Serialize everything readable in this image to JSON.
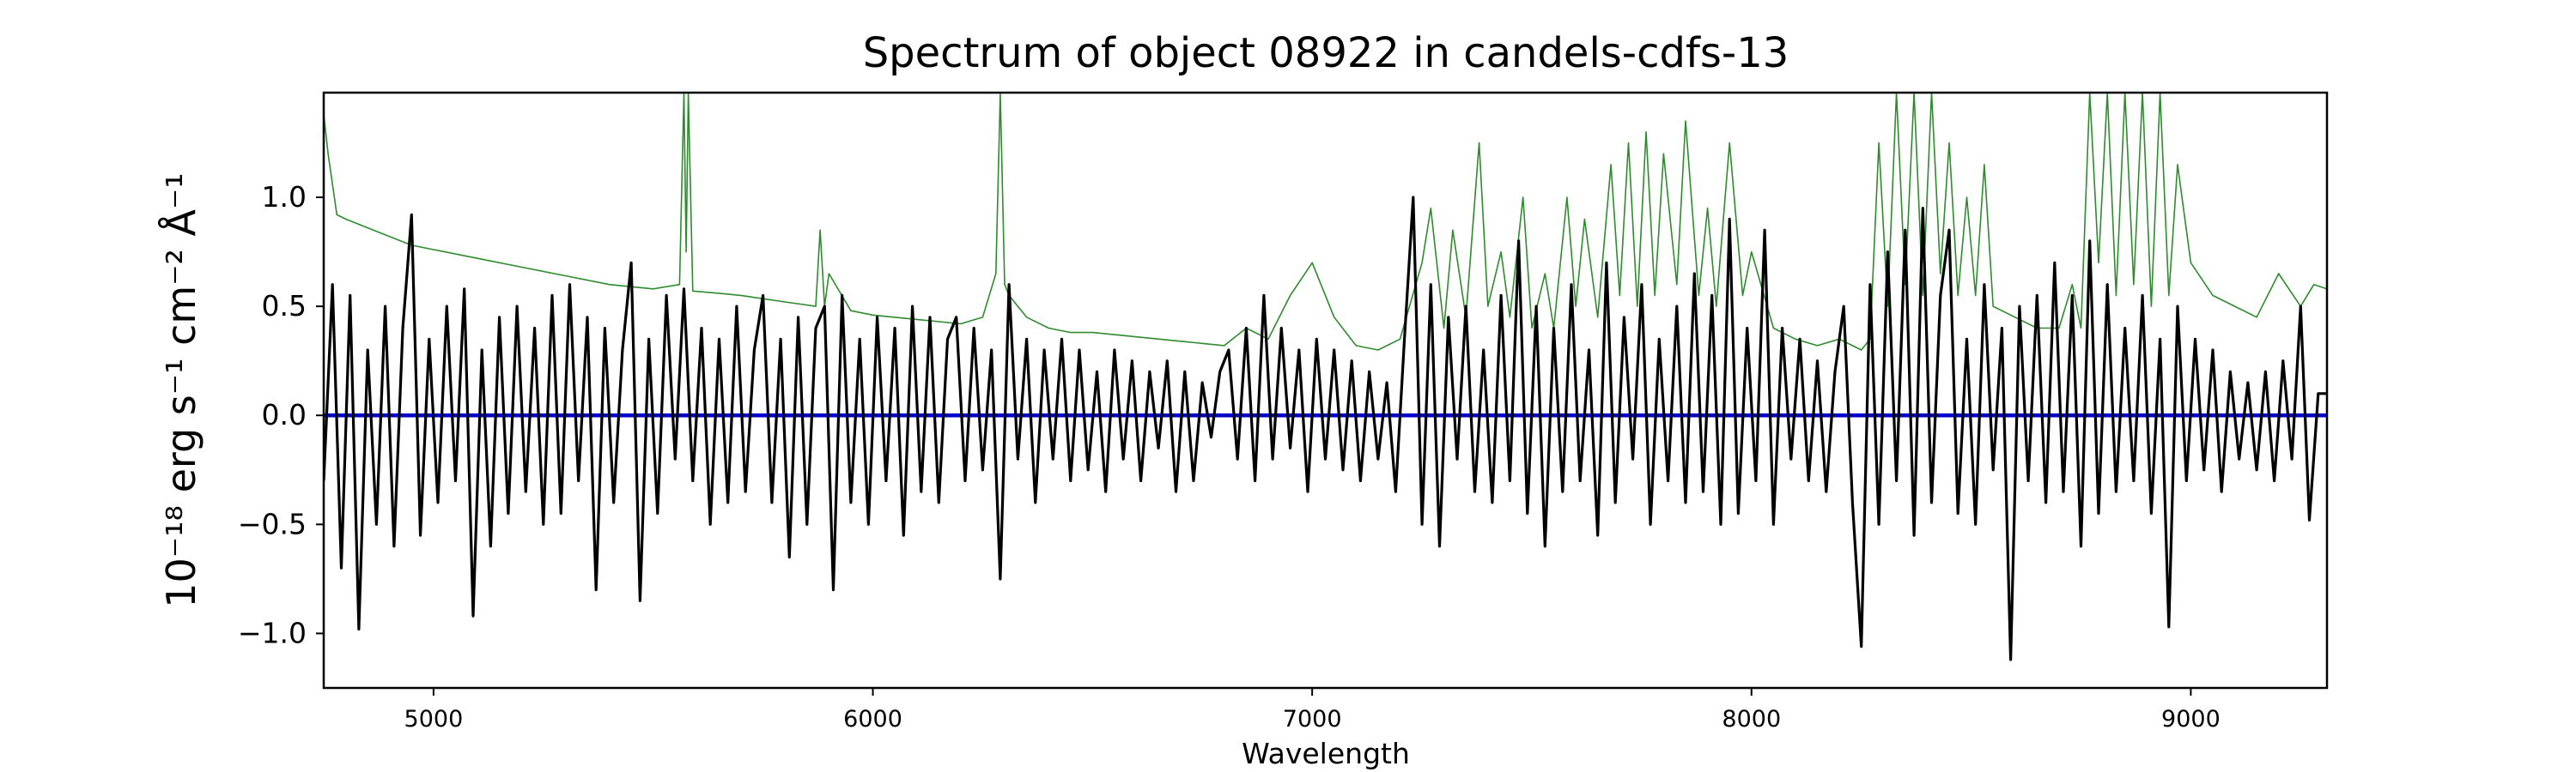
{
  "chart_data": {
    "type": "line",
    "title": "Spectrum of object 08922 in candels-cdfs-13",
    "xlabel": "Wavelength",
    "ylabel": "10⁻¹⁸ erg s⁻¹ cm⁻² Å⁻¹",
    "xlim": [
      4750,
      9310
    ],
    "ylim": [
      -1.25,
      1.48
    ],
    "x_ticks": [
      5000,
      6000,
      7000,
      8000,
      9000
    ],
    "y_ticks": [
      -1.0,
      -0.5,
      0.0,
      0.5,
      1.0
    ],
    "y_tick_labels": [
      "−1.0",
      "−0.5",
      "0.0",
      "0.5",
      "1.0"
    ],
    "grid": false,
    "colors": {
      "flux": "#000000",
      "error": "#2e8b2e",
      "zero": "#0000cd"
    },
    "series": [
      {
        "role": "flux",
        "x": [
          4750,
          4770,
          4790,
          4810,
          4830,
          4850,
          4870,
          4890,
          4910,
          4930,
          4950,
          4970,
          4990,
          5010,
          5030,
          5050,
          5070,
          5090,
          5110,
          5130,
          5150,
          5170,
          5190,
          5210,
          5230,
          5250,
          5270,
          5290,
          5310,
          5330,
          5350,
          5370,
          5390,
          5410,
          5430,
          5450,
          5470,
          5490,
          5510,
          5530,
          5550,
          5570,
          5590,
          5610,
          5630,
          5650,
          5670,
          5690,
          5710,
          5730,
          5750,
          5770,
          5790,
          5810,
          5830,
          5850,
          5870,
          5890,
          5910,
          5930,
          5950,
          5970,
          5990,
          6010,
          6030,
          6050,
          6070,
          6090,
          6110,
          6130,
          6150,
          6170,
          6190,
          6210,
          6230,
          6250,
          6270,
          6290,
          6310,
          6330,
          6350,
          6370,
          6390,
          6410,
          6430,
          6450,
          6470,
          6490,
          6510,
          6530,
          6550,
          6570,
          6590,
          6610,
          6630,
          6650,
          6670,
          6690,
          6710,
          6730,
          6750,
          6770,
          6790,
          6810,
          6830,
          6850,
          6870,
          6890,
          6910,
          6930,
          6950,
          6970,
          6990,
          7010,
          7030,
          7050,
          7070,
          7090,
          7110,
          7130,
          7150,
          7170,
          7190,
          7210,
          7230,
          7250,
          7270,
          7290,
          7310,
          7330,
          7350,
          7370,
          7390,
          7410,
          7430,
          7450,
          7470,
          7490,
          7510,
          7530,
          7550,
          7570,
          7590,
          7610,
          7630,
          7650,
          7670,
          7690,
          7710,
          7730,
          7750,
          7770,
          7790,
          7810,
          7830,
          7850,
          7870,
          7890,
          7910,
          7930,
          7950,
          7970,
          7990,
          8010,
          8030,
          8050,
          8070,
          8090,
          8110,
          8130,
          8150,
          8170,
          8190,
          8210,
          8230,
          8250,
          8270,
          8290,
          8310,
          8330,
          8350,
          8370,
          8390,
          8410,
          8430,
          8450,
          8470,
          8490,
          8510,
          8530,
          8550,
          8570,
          8590,
          8610,
          8630,
          8650,
          8670,
          8690,
          8710,
          8730,
          8750,
          8770,
          8790,
          8810,
          8830,
          8850,
          8870,
          8890,
          8910,
          8930,
          8950,
          8970,
          8990,
          9010,
          9030,
          9050,
          9070,
          9090,
          9110,
          9130,
          9150,
          9170,
          9190,
          9210,
          9230,
          9250,
          9270,
          9290,
          9310
        ],
        "y": [
          -0.3,
          0.6,
          -0.7,
          0.55,
          -0.98,
          0.3,
          -0.5,
          0.5,
          -0.6,
          0.4,
          0.92,
          -0.55,
          0.35,
          -0.4,
          0.5,
          -0.3,
          0.58,
          -0.92,
          0.3,
          -0.6,
          0.45,
          -0.45,
          0.5,
          -0.35,
          0.4,
          -0.5,
          0.55,
          -0.45,
          0.6,
          -0.3,
          0.45,
          -0.8,
          0.4,
          -0.4,
          0.3,
          0.7,
          -0.85,
          0.35,
          -0.45,
          0.55,
          -0.2,
          0.58,
          -0.3,
          0.4,
          -0.5,
          0.35,
          -0.4,
          0.5,
          -0.35,
          0.3,
          0.55,
          -0.4,
          0.35,
          -0.65,
          0.45,
          -0.5,
          0.4,
          0.5,
          -0.8,
          0.55,
          -0.4,
          0.35,
          -0.5,
          0.45,
          -0.3,
          0.4,
          -0.55,
          0.5,
          -0.35,
          0.45,
          -0.4,
          0.35,
          0.45,
          -0.3,
          0.4,
          -0.25,
          0.3,
          -0.75,
          0.6,
          -0.2,
          0.35,
          -0.4,
          0.3,
          -0.2,
          0.35,
          -0.3,
          0.3,
          -0.25,
          0.2,
          -0.35,
          0.3,
          -0.2,
          0.25,
          -0.3,
          0.2,
          -0.15,
          0.25,
          -0.35,
          0.2,
          -0.3,
          0.15,
          -0.1,
          0.2,
          0.3,
          -0.2,
          0.4,
          -0.3,
          0.55,
          -0.2,
          0.4,
          -0.15,
          0.3,
          -0.35,
          0.35,
          -0.2,
          0.3,
          -0.25,
          0.25,
          -0.3,
          0.2,
          -0.2,
          0.15,
          -0.35,
          0.35,
          1.0,
          -0.5,
          0.6,
          -0.6,
          0.45,
          -0.2,
          0.5,
          -0.35,
          0.3,
          -0.4,
          0.55,
          -0.3,
          0.8,
          -0.45,
          0.5,
          -0.6,
          0.4,
          -0.35,
          0.6,
          -0.3,
          0.3,
          -0.55,
          0.7,
          -0.4,
          0.45,
          -0.2,
          0.6,
          -0.5,
          0.35,
          -0.3,
          0.5,
          -0.4,
          0.65,
          -0.35,
          0.55,
          -0.5,
          0.9,
          -0.45,
          0.4,
          -0.3,
          0.85,
          -0.5,
          0.4,
          -0.2,
          0.35,
          -0.3,
          0.25,
          -0.35,
          0.2,
          0.5,
          -0.4,
          -1.06,
          0.6,
          -0.5,
          0.75,
          -0.3,
          0.85,
          -0.55,
          0.95,
          -0.4,
          0.55,
          0.85,
          -0.45,
          0.35,
          -0.5,
          0.6,
          -0.25,
          0.4,
          -1.12,
          0.5,
          -0.3,
          0.55,
          -0.4,
          0.7,
          -0.35,
          0.55,
          -0.6,
          0.8,
          -0.45,
          0.6,
          -0.35,
          0.4,
          -0.3,
          0.55,
          -0.45,
          0.35,
          -0.97,
          0.5,
          -0.3,
          0.35,
          -0.25,
          0.3,
          -0.35,
          0.2,
          -0.2,
          0.15,
          -0.25,
          0.2,
          -0.3,
          0.25,
          -0.2,
          0.5,
          -0.48,
          0.1,
          0.1
        ]
      },
      {
        "role": "error",
        "x": [
          4750,
          4760,
          4780,
          4800,
          4850,
          4900,
          4950,
          5000,
          5100,
          5200,
          5300,
          5400,
          5500,
          5560,
          5570,
          5575,
          5580,
          5590,
          5650,
          5700,
          5800,
          5870,
          5880,
          5890,
          5900,
          5950,
          6000,
          6100,
          6200,
          6250,
          6280,
          6290,
          6300,
          6310,
          6350,
          6400,
          6450,
          6500,
          6600,
          6700,
          6800,
          6850,
          6900,
          6950,
          7000,
          7050,
          7100,
          7150,
          7200,
          7250,
          7270,
          7300,
          7320,
          7350,
          7380,
          7400,
          7430,
          7450,
          7480,
          7500,
          7530,
          7550,
          7580,
          7600,
          7620,
          7650,
          7680,
          7700,
          7720,
          7740,
          7760,
          7780,
          7800,
          7830,
          7850,
          7880,
          7900,
          7920,
          7950,
          7980,
          8000,
          8050,
          8100,
          8150,
          8200,
          8250,
          8270,
          8290,
          8310,
          8330,
          8350,
          8370,
          8390,
          8410,
          8430,
          8450,
          8470,
          8490,
          8510,
          8530,
          8550,
          8600,
          8650,
          8700,
          8730,
          8750,
          8770,
          8790,
          8810,
          8830,
          8850,
          8870,
          8890,
          8910,
          8930,
          8950,
          8970,
          9000,
          9050,
          9100,
          9150,
          9200,
          9250,
          9280,
          9310
        ],
        "y": [
          1.38,
          1.2,
          0.92,
          0.9,
          0.86,
          0.82,
          0.78,
          0.76,
          0.72,
          0.68,
          0.64,
          0.6,
          0.58,
          0.6,
          1.48,
          0.75,
          1.48,
          0.57,
          0.56,
          0.55,
          0.52,
          0.5,
          0.85,
          0.5,
          0.65,
          0.48,
          0.46,
          0.44,
          0.42,
          0.45,
          0.65,
          1.48,
          0.6,
          0.55,
          0.45,
          0.4,
          0.38,
          0.38,
          0.36,
          0.34,
          0.32,
          0.4,
          0.35,
          0.55,
          0.7,
          0.45,
          0.32,
          0.3,
          0.35,
          0.7,
          0.95,
          0.4,
          0.85,
          0.45,
          1.25,
          0.5,
          0.75,
          0.45,
          1.0,
          0.4,
          0.65,
          0.4,
          1.0,
          0.5,
          0.9,
          0.45,
          1.15,
          0.55,
          1.25,
          0.5,
          1.3,
          0.55,
          1.2,
          0.6,
          1.35,
          0.55,
          0.95,
          0.5,
          1.25,
          0.55,
          0.75,
          0.4,
          0.35,
          0.32,
          0.35,
          0.3,
          0.35,
          1.25,
          0.5,
          1.48,
          0.6,
          1.48,
          0.55,
          1.48,
          0.65,
          1.25,
          0.55,
          1.0,
          0.55,
          1.15,
          0.5,
          0.45,
          0.4,
          0.4,
          0.6,
          0.4,
          1.48,
          0.7,
          1.48,
          0.55,
          1.48,
          0.6,
          1.48,
          0.5,
          1.48,
          0.55,
          1.15,
          0.7,
          0.55,
          0.5,
          0.45,
          0.65,
          0.5,
          0.6,
          0.58
        ]
      },
      {
        "role": "zero",
        "x": [
          4750,
          9310
        ],
        "y": [
          0,
          0
        ]
      }
    ]
  }
}
